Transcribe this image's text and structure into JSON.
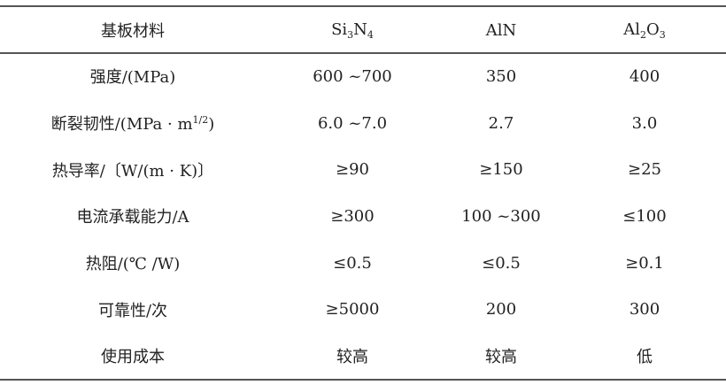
{
  "table": {
    "header": {
      "col0": "基板材料",
      "col1": {
        "a": "Si",
        "a_sub": "3",
        "b": "N",
        "b_sub": "4"
      },
      "col2": "AlN",
      "col3": {
        "a": "Al",
        "a_sub": "2",
        "b": "O",
        "b_sub": "3"
      }
    },
    "rows": [
      {
        "label": "强度/(MPa)",
        "si3n4": "600 ~700",
        "aln": "350",
        "al2o3": "400"
      },
      {
        "label": "断裂韧性/(MPa · m",
        "label_sup": "1/2",
        "label_end": ")",
        "si3n4": "6.0 ~7.0",
        "aln": "2.7",
        "al2o3": "3.0"
      },
      {
        "label": "热导率/〔W/(m · K)〕",
        "si3n4": "≥90",
        "aln": "≥150",
        "al2o3": "≥25"
      },
      {
        "label": "电流承载能力/A",
        "si3n4": "≥300",
        "aln": "100 ~300",
        "al2o3": "≤100"
      },
      {
        "label": "热阻/(℃ /W)",
        "si3n4": "≤0.5",
        "aln": "≤0.5",
        "al2o3": "≥0.1"
      },
      {
        "label": "可靠性/次",
        "si3n4": "≥5000",
        "aln": "200",
        "al2o3": "300"
      },
      {
        "label": "使用成本",
        "si3n4": "较高",
        "aln": "较高",
        "al2o3": "低"
      }
    ]
  }
}
